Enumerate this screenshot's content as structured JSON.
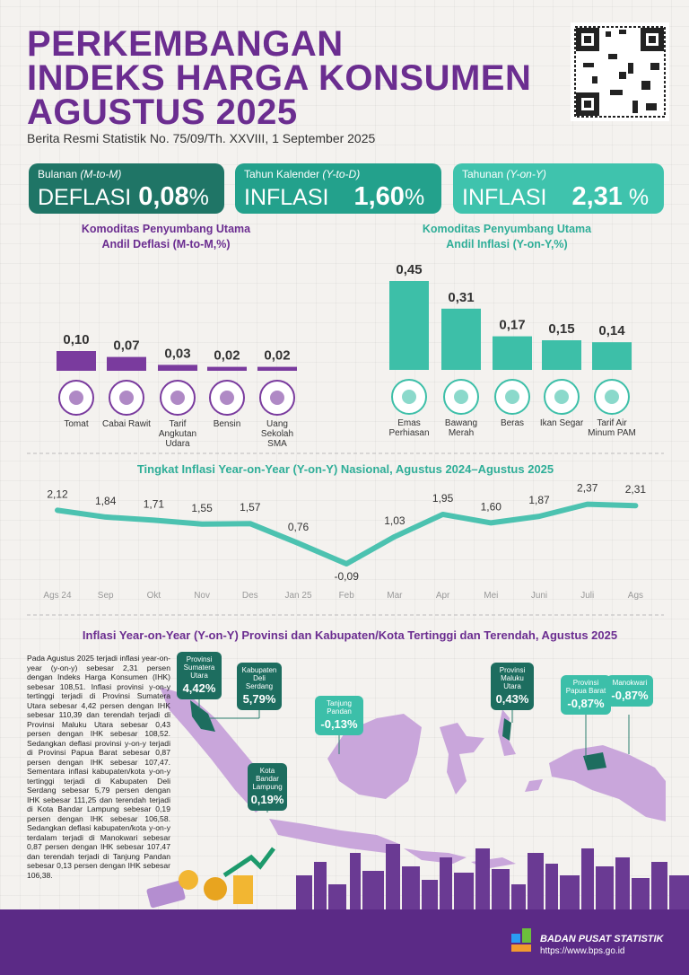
{
  "header": {
    "title_lines": [
      "PERKEMBANGAN",
      "INDEKS HARGA KONSUMEN",
      "AGUSTUS 2025"
    ],
    "subtitle": "Berita Resmi Statistik No. 75/09/Th. XXVIII, 1 September 2025"
  },
  "cards": [
    {
      "period": "Bulanan",
      "period_code": "(M-to-M)",
      "label": "DEFLASI",
      "value": "0,08",
      "unit": "%"
    },
    {
      "period": "Tahun Kalender",
      "period_code": "(Y-to-D)",
      "label": "INFLASI",
      "value": "1,60",
      "unit": "%"
    },
    {
      "period": "Tahunan",
      "period_code": "(Y-on-Y)",
      "label": "INFLASI",
      "value": "2,31",
      "unit": "%"
    }
  ],
  "chart_data": [
    {
      "type": "bar",
      "title_lines": [
        "Komoditas Penyumbang Utama",
        "Andil Deflasi (M-to-M,%)"
      ],
      "categories": [
        "Tomat",
        "Cabai Rawit",
        "Tarif Angkutan Udara",
        "Bensin",
        "Uang Sekolah SMA"
      ],
      "values": [
        0.1,
        0.07,
        0.03,
        0.02,
        0.02
      ],
      "value_labels": [
        "0,10",
        "0,07",
        "0,03",
        "0,02",
        "0,02"
      ],
      "color": "#7a3b9e"
    },
    {
      "type": "bar",
      "title_lines": [
        "Komoditas Penyumbang Utama",
        "Andil Inflasi (Y-on-Y,%)"
      ],
      "categories": [
        "Emas Perhiasan",
        "Bawang Merah",
        "Beras",
        "Ikan Segar",
        "Tarif Air Minum PAM"
      ],
      "values": [
        0.45,
        0.31,
        0.17,
        0.15,
        0.14
      ],
      "value_labels": [
        "0,45",
        "0,31",
        "0,17",
        "0,15",
        "0,14"
      ],
      "color": "#3dbfa8"
    },
    {
      "type": "line",
      "title": "Tingkat Inflasi Year-on-Year (Y-on-Y) Nasional, Agustus 2024–Agustus 2025",
      "categories": [
        "Ags 24",
        "Sep",
        "Okt",
        "Nov",
        "Des",
        "Jan 25",
        "Feb",
        "Mar",
        "Apr",
        "Mei",
        "Juni",
        "Juli",
        "Ags"
      ],
      "values": [
        2.12,
        1.84,
        1.71,
        1.55,
        1.57,
        0.76,
        -0.09,
        1.03,
        1.95,
        1.6,
        1.87,
        2.37,
        2.31
      ],
      "value_labels": [
        "2,12",
        "1,84",
        "1,71",
        "1,55",
        "1,57",
        "0,76",
        "-0,09",
        "1,03",
        "1,95",
        "1,60",
        "1,87",
        "2,37",
        "2,31"
      ],
      "color": "#4cc2b0"
    }
  ],
  "map": {
    "title": "Inflasi Year-on-Year (Y-on-Y) Provinsi dan Kabupaten/Kota Tertinggi dan Terendah, Agustus 2025",
    "description": "Pada Agustus 2025 terjadi inflasi year-on-year (y-on-y) sebesar 2,31 persen dengan Indeks Harga Konsumen (IHK) sebesar 108,51. Inflasi provinsi y-on-y tertinggi terjadi di Provinsi Sumatera Utara sebesar 4,42 persen dengan IHK sebesar 110,39 dan terendah terjadi di Provinsi Maluku Utara sebesar 0,43 persen dengan IHK sebesar 108,52. Sedangkan deflasi provinsi y-on-y terjadi di Provinsi Papua Barat sebesar 0,87 persen dengan IHK sebesar 107,47. Sementara inflasi kabupaten/kota y-on-y tertinggi terjadi di Kabupaten Deli Serdang sebesar 5,79 persen dengan IHK sebesar 111,25 dan terendah terjadi di Kota Bandar Lampung sebesar 0,19 persen dengan IHK sebesar 106,58. Sedangkan deflasi kabupaten/kota y-on-y terdalam terjadi di Manokwari sebesar 0,87 persen dengan IHK sebesar 107,47 dan terendah terjadi di Tanjung Pandan sebesar 0,13 persen dengan IHK sebesar 106,38.",
    "callouts": [
      {
        "name": "Provinsi Sumatera Utara",
        "value": "4,42%"
      },
      {
        "name": "Kabupaten Deli Serdang",
        "value": "5,79%"
      },
      {
        "name": "Tanjung Pandan",
        "value": "-0,13%"
      },
      {
        "name": "Kota Bandar Lampung",
        "value": "0,19%"
      },
      {
        "name": "Provinsi Maluku Utara",
        "value": "0,43%"
      },
      {
        "name": "Provinsi Papua Barat",
        "value": "-0,87%"
      },
      {
        "name": "Manokwari",
        "value": "-0,87%"
      }
    ]
  },
  "footer": {
    "org": "BADAN PUSAT STATISTIK",
    "url": "https://www.bps.go.id"
  }
}
